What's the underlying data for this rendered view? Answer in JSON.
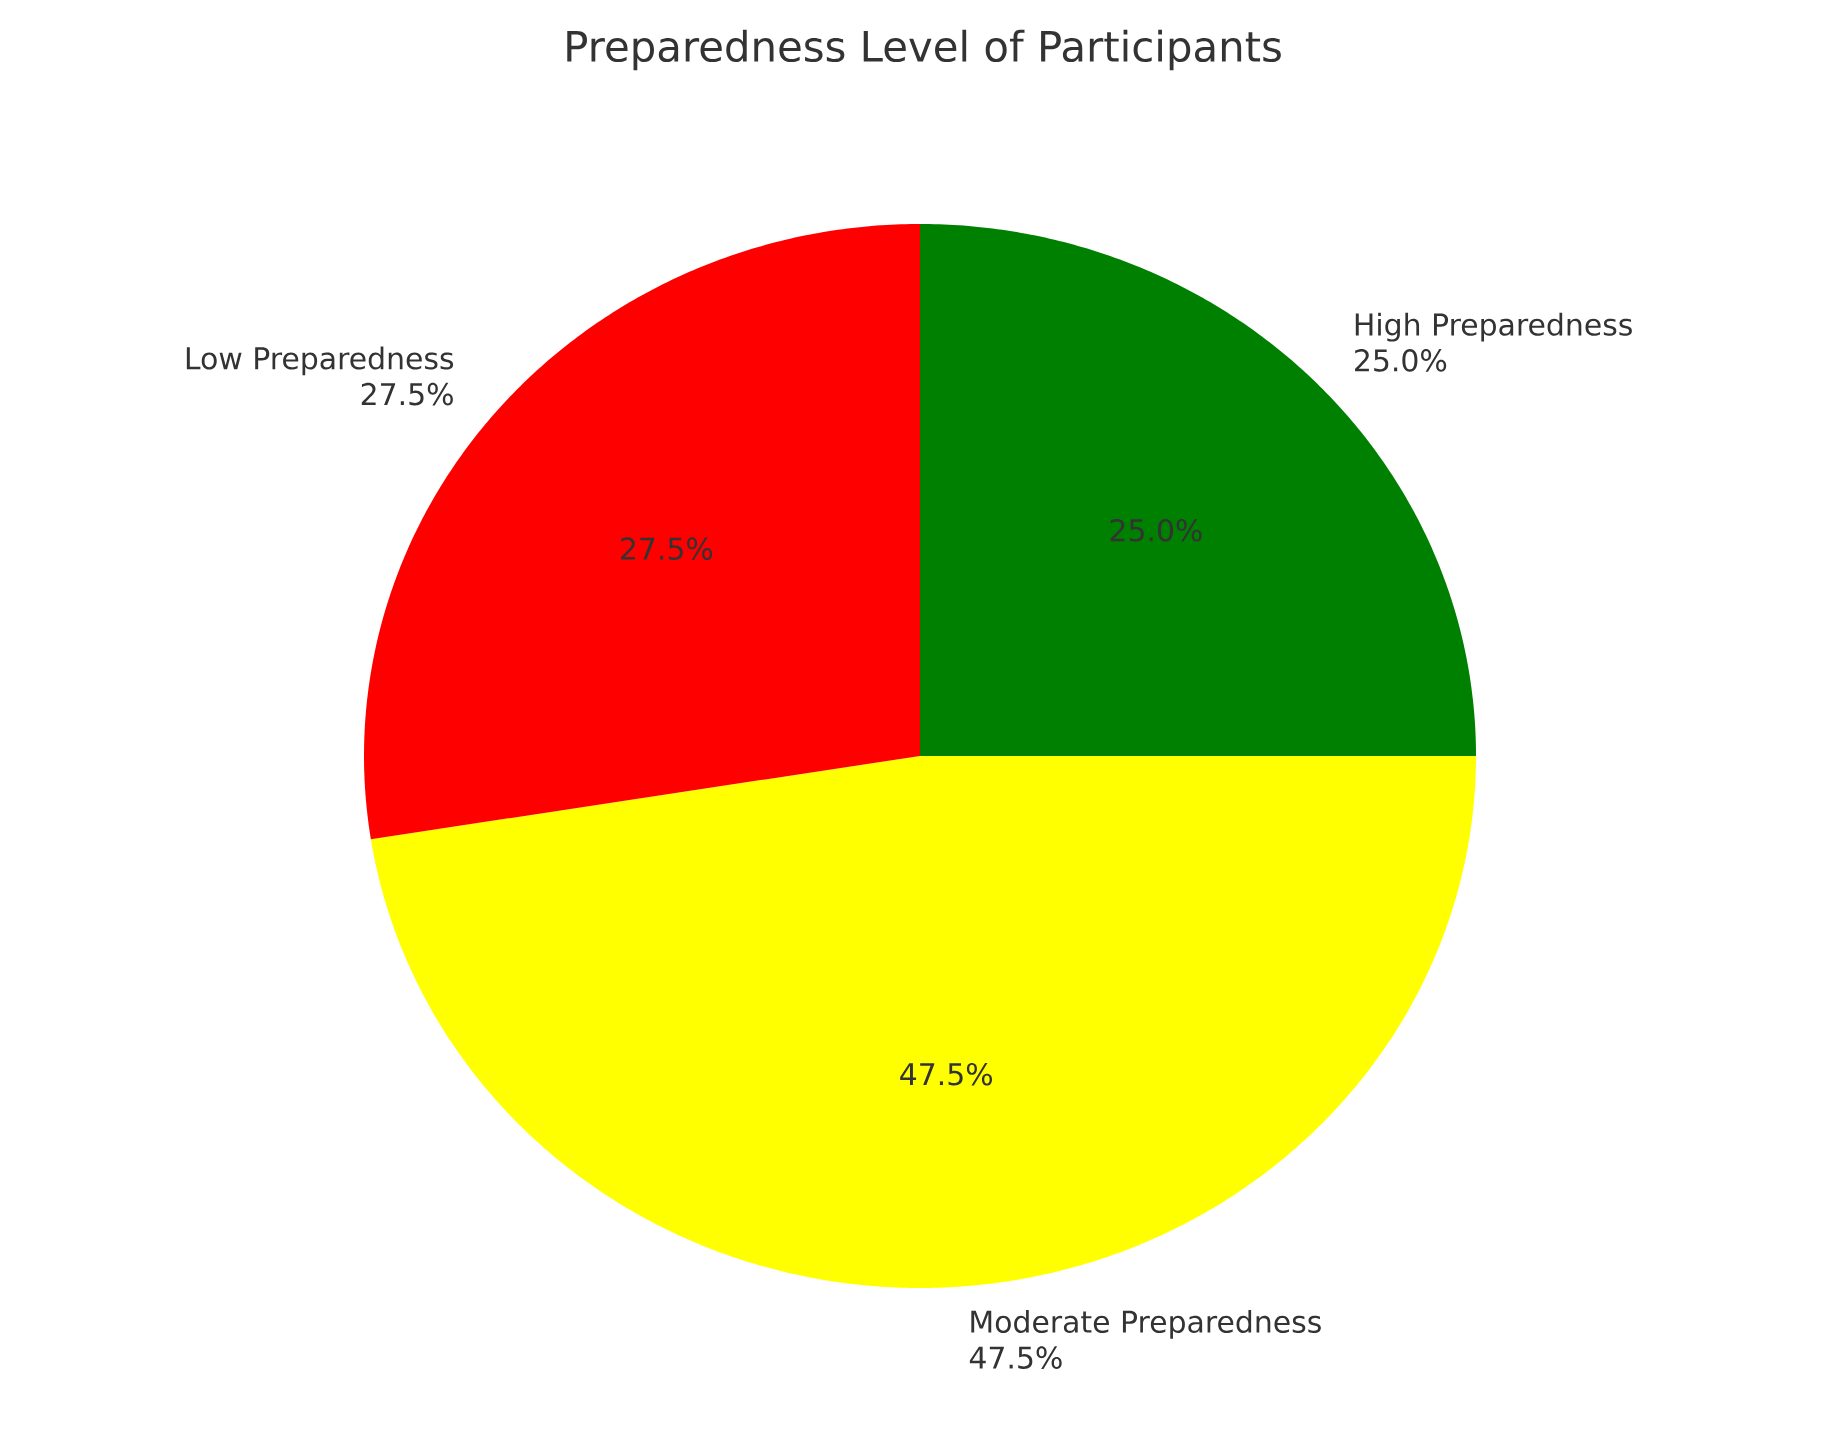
{
  "chart_data": {
    "type": "pie",
    "title": "Preparedness Level of Participants",
    "categories": [
      "High Preparedness",
      "Moderate Preparedness",
      "Low Preparedness"
    ],
    "values": [
      25.0,
      47.5,
      27.5
    ],
    "colors": [
      "#008000",
      "#ffff00",
      "#ff0000"
    ],
    "value_labels": [
      "25.0%",
      "47.5%",
      "27.5%"
    ]
  }
}
